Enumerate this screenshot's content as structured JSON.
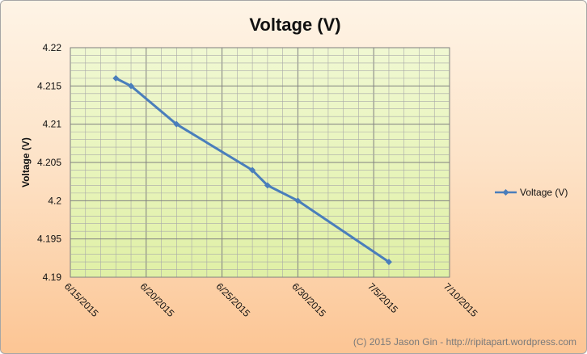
{
  "chart_data": {
    "type": "line",
    "title": "Voltage (V)",
    "ylabel": "Voltage (V)",
    "xlabel": "",
    "ylim": [
      4.19,
      4.22
    ],
    "y_ticks": [
      "4.19",
      "4.195",
      "4.2",
      "4.205",
      "4.21",
      "4.215",
      "4.22"
    ],
    "x_tick_labels": [
      "6/15/2015",
      "6/20/2015",
      "6/25/2015",
      "6/30/2015",
      "7/5/2015",
      "7/10/2015"
    ],
    "x_dates": [
      "2015-06-18",
      "2015-06-19",
      "2015-06-22",
      "2015-06-27",
      "2015-06-28",
      "2015-06-30",
      "2015-07-06"
    ],
    "series": [
      {
        "name": "Voltage (V)",
        "color": "#4a7ebb",
        "values": [
          4.216,
          4.215,
          4.21,
          4.204,
          4.202,
          4.2,
          4.192
        ]
      }
    ],
    "grid": true,
    "legend_position": "right",
    "plot_background": "#eaf6bf"
  },
  "footer": {
    "credit": "(C) 2015 Jason Gin - http://ripitapart.wordpress.com"
  }
}
